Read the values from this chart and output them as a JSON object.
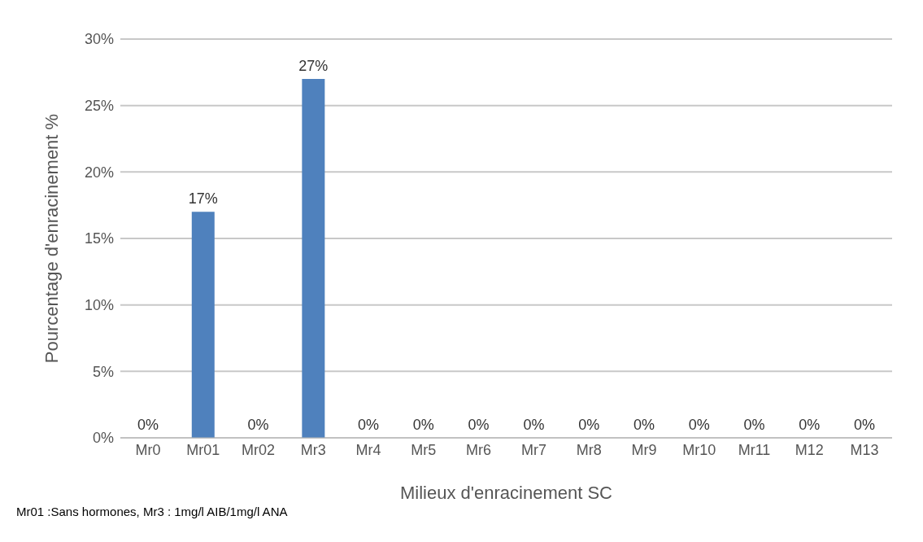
{
  "chart_data": {
    "type": "bar",
    "categories": [
      "Mr0",
      "Mr01",
      "Mr02",
      "Mr3",
      "Mr4",
      "Mr5",
      "Mr6",
      "Mr7",
      "Mr8",
      "Mr9",
      "Mr10",
      "Mr11",
      "M12",
      "M13"
    ],
    "values": [
      0,
      17,
      0,
      27,
      0,
      0,
      0,
      0,
      0,
      0,
      0,
      0,
      0,
      0
    ],
    "value_labels": [
      "0%",
      "17%",
      "0%",
      "27%",
      "0%",
      "0%",
      "0%",
      "0%",
      "0%",
      "0%",
      "0%",
      "0%",
      "0%",
      "0%"
    ],
    "color": "#4f81bd",
    "ylim": [
      0,
      30
    ],
    "yticks": [
      {
        "value": 0,
        "label": "0%"
      },
      {
        "value": 5,
        "label": "5%"
      },
      {
        "value": 10,
        "label": "10%"
      },
      {
        "value": 15,
        "label": "15%"
      },
      {
        "value": 20,
        "label": "20%"
      },
      {
        "value": 25,
        "label": "25%"
      },
      {
        "value": 30,
        "label": "30%"
      }
    ],
    "ylabel": "Pourcentage d'enracinement  %",
    "xlabel": "Milieux d'enracinement SC",
    "grid": "y",
    "annotations": [
      "Mr01 :Sans hormones, Mr3 : 1mg/l AIB/1mg/l ANA"
    ]
  }
}
